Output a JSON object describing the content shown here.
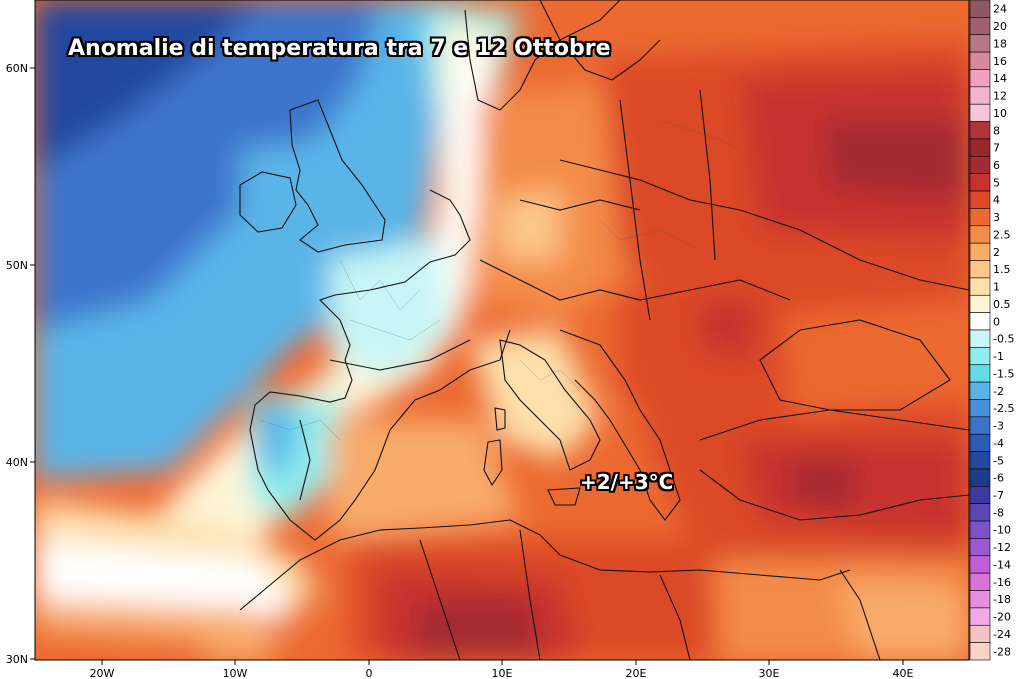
{
  "map": {
    "title": "Anomalie di temperatura tra 7 e 12 Ottobre",
    "annotation": "+2/+3°C",
    "lat_labels": [
      "60N",
      "50N",
      "40N",
      "30N"
    ],
    "lon_labels": [
      "20W",
      "10W",
      "0",
      "10E",
      "20E",
      "30E",
      "40E"
    ]
  },
  "legend": {
    "entries": [
      {
        "label": "24",
        "color": "#8b5a64"
      },
      {
        "label": "20",
        "color": "#a0606e"
      },
      {
        "label": "18",
        "color": "#b47a8a"
      },
      {
        "label": "16",
        "color": "#d6889c"
      },
      {
        "label": "14",
        "color": "#f0a0c0"
      },
      {
        "label": "12",
        "color": "#f2b4cc"
      },
      {
        "label": "10",
        "color": "#f4c6d8"
      },
      {
        "label": "8",
        "color": "#b0343c"
      },
      {
        "label": "7",
        "color": "#96282e"
      },
      {
        "label": "6",
        "color": "#a52a32"
      },
      {
        "label": "5",
        "color": "#c8322e"
      },
      {
        "label": "4",
        "color": "#dc4828"
      },
      {
        "label": "3",
        "color": "#ec6a32"
      },
      {
        "label": "2.5",
        "color": "#f48c4a"
      },
      {
        "label": "2",
        "color": "#f8ac6a"
      },
      {
        "label": "1.5",
        "color": "#fcc88a"
      },
      {
        "label": "1",
        "color": "#fde0ac"
      },
      {
        "label": "0.5",
        "color": "#fef4d6"
      },
      {
        "label": "0",
        "color": "#ffffff"
      },
      {
        "label": "-0.5",
        "color": "#c8f6f6"
      },
      {
        "label": "-1",
        "color": "#8eeeee"
      },
      {
        "label": "-1.5",
        "color": "#64dce8"
      },
      {
        "label": "-2",
        "color": "#5ab4e8"
      },
      {
        "label": "-2.5",
        "color": "#4a90dc"
      },
      {
        "label": "-3",
        "color": "#3c74cc"
      },
      {
        "label": "-4",
        "color": "#2c5cb8"
      },
      {
        "label": "-5",
        "color": "#2248a0"
      },
      {
        "label": "-6",
        "color": "#1e3c8c"
      },
      {
        "label": "-7",
        "color": "#3a3aa0"
      },
      {
        "label": "-8",
        "color": "#5a46b4"
      },
      {
        "label": "-10",
        "color": "#7c52c8"
      },
      {
        "label": "-12",
        "color": "#9a5ad0"
      },
      {
        "label": "-14",
        "color": "#c060d8"
      },
      {
        "label": "-16",
        "color": "#d874d8"
      },
      {
        "label": "-18",
        "color": "#e88ee0"
      },
      {
        "label": "-20",
        "color": "#f0aae8"
      },
      {
        "label": "-24",
        "color": "#f4c4c4"
      },
      {
        "label": "-28",
        "color": "#f8d4c8"
      }
    ]
  }
}
